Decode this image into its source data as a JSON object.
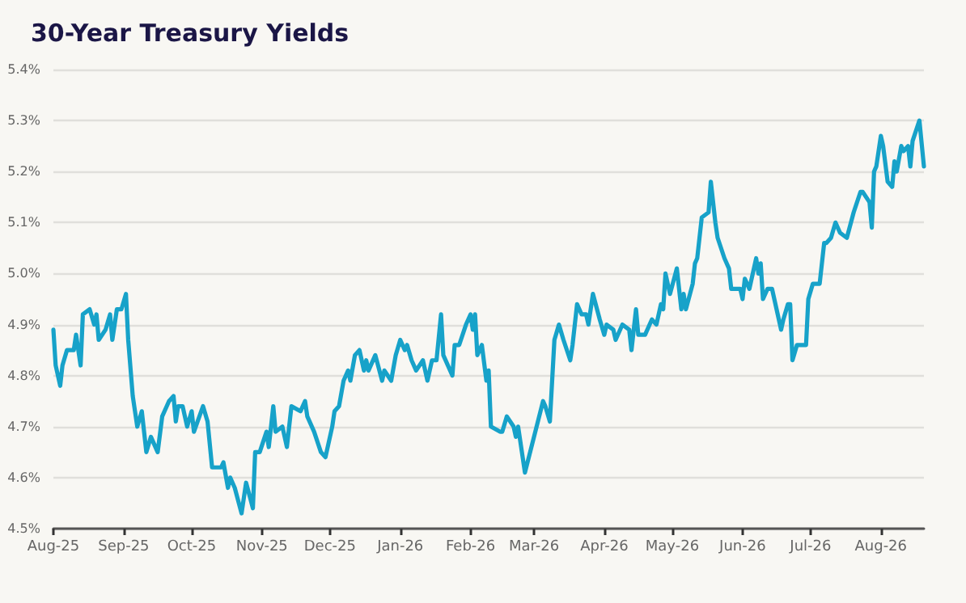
{
  "chart_data": {
    "type": "line",
    "title": "30-Year Treasury Yields",
    "x": [
      "2025-08-01",
      "2025-08-02",
      "2025-08-04",
      "2025-08-05",
      "2025-08-07",
      "2025-08-10",
      "2025-08-11",
      "2025-08-13",
      "2025-08-14",
      "2025-08-17",
      "2025-08-19",
      "2025-08-20",
      "2025-08-21",
      "2025-08-24",
      "2025-08-26",
      "2025-08-27",
      "2025-08-29",
      "2025-08-31",
      "2025-09-02",
      "2025-09-03",
      "2025-09-05",
      "2025-09-07",
      "2025-09-09",
      "2025-09-11",
      "2025-09-13",
      "2025-09-16",
      "2025-09-18",
      "2025-09-21",
      "2025-09-23",
      "2025-09-24",
      "2025-09-25",
      "2025-09-27",
      "2025-09-29",
      "2025-10-01",
      "2025-10-02",
      "2025-10-06",
      "2025-10-08",
      "2025-10-10",
      "2025-10-14",
      "2025-10-15",
      "2025-10-17",
      "2025-10-18",
      "2025-10-20",
      "2025-10-23",
      "2025-10-25",
      "2025-10-28",
      "2025-10-29",
      "2025-10-31",
      "2025-11-03",
      "2025-11-04",
      "2025-11-06",
      "2025-11-07",
      "2025-11-10",
      "2025-11-12",
      "2025-11-14",
      "2025-11-18",
      "2025-11-20",
      "2025-11-21",
      "2025-11-24",
      "2025-11-27",
      "2025-11-29",
      "2025-12-02",
      "2025-12-03",
      "2025-12-05",
      "2025-12-07",
      "2025-12-09",
      "2025-12-10",
      "2025-12-12",
      "2025-12-14",
      "2025-12-16",
      "2025-12-17",
      "2025-12-18",
      "2025-12-21",
      "2025-12-24",
      "2025-12-25",
      "2025-12-28",
      "2025-12-30",
      "2026-01-01",
      "2026-01-03",
      "2026-01-04",
      "2026-01-06",
      "2026-01-08",
      "2026-01-11",
      "2026-01-13",
      "2026-01-15",
      "2026-01-17",
      "2026-01-19",
      "2026-01-20",
      "2026-01-24",
      "2026-01-25",
      "2026-01-27",
      "2026-01-30",
      "2026-02-01",
      "2026-02-02",
      "2026-02-03",
      "2026-02-04",
      "2026-02-06",
      "2026-02-08",
      "2026-02-09",
      "2026-02-10",
      "2026-02-14",
      "2026-02-15",
      "2026-02-17",
      "2026-02-20",
      "2026-02-21",
      "2026-02-22",
      "2026-02-25",
      "2026-03-05",
      "2026-03-06",
      "2026-03-08",
      "2026-03-10",
      "2026-03-12",
      "2026-03-14",
      "2026-03-17",
      "2026-03-18",
      "2026-03-20",
      "2026-03-22",
      "2026-03-24",
      "2026-03-25",
      "2026-03-27",
      "2026-03-30",
      "2026-04-01",
      "2026-04-02",
      "2026-04-05",
      "2026-04-06",
      "2026-04-09",
      "2026-04-12",
      "2026-04-13",
      "2026-04-15",
      "2026-04-16",
      "2026-04-19",
      "2026-04-21",
      "2026-04-22",
      "2026-04-24",
      "2026-04-26",
      "2026-04-27",
      "2026-04-28",
      "2026-04-30",
      "2026-05-03",
      "2026-05-05",
      "2026-05-06",
      "2026-05-07",
      "2026-05-10",
      "2026-05-11",
      "2026-05-12",
      "2026-05-14",
      "2026-05-17",
      "2026-05-18",
      "2026-05-20",
      "2026-05-21",
      "2026-05-24",
      "2026-05-26",
      "2026-05-27",
      "2026-05-31",
      "2026-06-01",
      "2026-06-02",
      "2026-06-04",
      "2026-06-07",
      "2026-06-08",
      "2026-06-09",
      "2026-06-10",
      "2026-06-12",
      "2026-06-14",
      "2026-06-16",
      "2026-06-18",
      "2026-06-19",
      "2026-06-21",
      "2026-06-22",
      "2026-06-23",
      "2026-06-25",
      "2026-06-29",
      "2026-06-30",
      "2026-07-02",
      "2026-07-05",
      "2026-07-07",
      "2026-07-08",
      "2026-07-10",
      "2026-07-12",
      "2026-07-14",
      "2026-07-17",
      "2026-07-20",
      "2026-07-23",
      "2026-07-24",
      "2026-07-27",
      "2026-07-28",
      "2026-07-29",
      "2026-07-30",
      "2026-08-01",
      "2026-08-02",
      "2026-08-04",
      "2026-08-06",
      "2026-08-07",
      "2026-08-08",
      "2026-08-10",
      "2026-08-11",
      "2026-08-13",
      "2026-08-14",
      "2026-08-15",
      "2026-08-18",
      "2026-08-20"
    ],
    "series": [
      {
        "color": "#17a2c9",
        "values": [
          4.89,
          4.82,
          4.78,
          4.82,
          4.85,
          4.85,
          4.88,
          4.82,
          4.92,
          4.93,
          4.9,
          4.92,
          4.87,
          4.89,
          4.92,
          4.87,
          4.93,
          4.93,
          4.96,
          4.87,
          4.76,
          4.7,
          4.73,
          4.65,
          4.68,
          4.65,
          4.72,
          4.75,
          4.76,
          4.71,
          4.74,
          4.74,
          4.7,
          4.73,
          4.69,
          4.74,
          4.71,
          4.62,
          4.62,
          4.63,
          4.58,
          4.6,
          4.58,
          4.53,
          4.59,
          4.54,
          4.65,
          4.65,
          4.69,
          4.66,
          4.74,
          4.69,
          4.7,
          4.66,
          4.74,
          4.73,
          4.75,
          4.72,
          4.69,
          4.65,
          4.64,
          4.7,
          4.73,
          4.74,
          4.79,
          4.81,
          4.79,
          4.84,
          4.85,
          4.81,
          4.83,
          4.81,
          4.84,
          4.79,
          4.81,
          4.79,
          4.84,
          4.87,
          4.85,
          4.86,
          4.83,
          4.81,
          4.83,
          4.79,
          4.83,
          4.83,
          4.92,
          4.84,
          4.8,
          4.86,
          4.86,
          4.9,
          4.92,
          4.89,
          4.92,
          4.84,
          4.86,
          4.79,
          4.81,
          4.7,
          4.69,
          4.69,
          4.72,
          4.7,
          4.68,
          4.7,
          4.61,
          4.75,
          4.74,
          4.71,
          4.87,
          4.9,
          4.87,
          4.83,
          4.86,
          4.94,
          4.92,
          4.92,
          4.9,
          4.96,
          4.91,
          4.88,
          4.9,
          4.89,
          4.87,
          4.9,
          4.89,
          4.85,
          4.93,
          4.88,
          4.88,
          4.9,
          4.91,
          4.9,
          4.94,
          4.93,
          5.0,
          4.96,
          5.01,
          4.93,
          4.96,
          4.93,
          4.98,
          5.02,
          5.03,
          5.11,
          5.12,
          5.18,
          5.1,
          5.07,
          5.03,
          5.01,
          4.97,
          4.97,
          4.95,
          4.99,
          4.97,
          5.03,
          5.0,
          5.02,
          4.95,
          4.97,
          4.97,
          4.93,
          4.89,
          4.91,
          4.94,
          4.94,
          4.83,
          4.86,
          4.86,
          4.95,
          4.98,
          4.98,
          5.06,
          5.06,
          5.07,
          5.1,
          5.08,
          5.07,
          5.12,
          5.16,
          5.16,
          5.14,
          5.09,
          5.2,
          5.21,
          5.27,
          5.25,
          5.18,
          5.17,
          5.22,
          5.2,
          5.25,
          5.24,
          5.25,
          5.21,
          5.26,
          5.3,
          5.21
        ]
      }
    ],
    "xlim": [
      "2025-08-01",
      "2026-08-20"
    ],
    "xticks": [
      {
        "value": "2025-08-01",
        "label": "Aug-25"
      },
      {
        "value": "2025-09-01",
        "label": "Sep-25"
      },
      {
        "value": "2025-10-01",
        "label": "Oct-25"
      },
      {
        "value": "2025-11-01",
        "label": "Nov-25"
      },
      {
        "value": "2025-12-01",
        "label": "Dec-25"
      },
      {
        "value": "2026-01-01",
        "label": "Jan-26"
      },
      {
        "value": "2026-02-01",
        "label": "Feb-26"
      },
      {
        "value": "2026-03-01",
        "label": "Mar-26"
      },
      {
        "value": "2026-04-01",
        "label": "Apr-26"
      },
      {
        "value": "2026-05-01",
        "label": "May-26"
      },
      {
        "value": "2026-06-01",
        "label": "Jun-26"
      },
      {
        "value": "2026-07-01",
        "label": "Jul-26"
      },
      {
        "value": "2026-08-01",
        "label": "Aug-26"
      }
    ],
    "ylim": [
      4.5,
      5.4
    ],
    "yticks": [
      {
        "value": 4.5,
        "label": "4.5%"
      },
      {
        "value": 4.6,
        "label": "4.6%"
      },
      {
        "value": 4.7,
        "label": "4.7%"
      },
      {
        "value": 4.8,
        "label": "4.8%"
      },
      {
        "value": 4.9,
        "label": "4.9%"
      },
      {
        "value": 5.0,
        "label": "5.0%"
      },
      {
        "value": 5.1,
        "label": "5.1%"
      },
      {
        "value": 5.2,
        "label": "5.2%"
      },
      {
        "value": 5.3,
        "label": "5.3%"
      },
      {
        "value": 5.4,
        "label": "5.4%"
      }
    ],
    "grid": "y",
    "marker": "none",
    "line_style": "solid"
  }
}
